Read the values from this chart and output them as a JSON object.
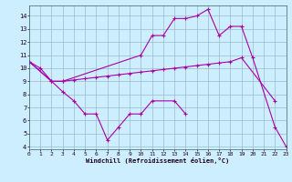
{
  "line1_x": [
    0,
    1,
    2,
    3,
    10,
    11,
    12,
    13,
    14,
    15,
    16,
    17,
    18,
    19,
    20,
    22,
    23
  ],
  "line1_y": [
    10.5,
    10.0,
    9.0,
    9.0,
    11.0,
    12.5,
    12.5,
    13.8,
    13.8,
    14.0,
    14.5,
    12.5,
    13.2,
    13.2,
    10.8,
    5.5,
    4.0
  ],
  "line2_x": [
    0,
    2,
    3,
    4,
    5,
    6,
    7,
    8,
    9,
    10,
    11,
    12,
    13,
    14,
    15,
    16,
    17,
    18,
    19,
    22
  ],
  "line2_y": [
    10.5,
    9.0,
    9.0,
    9.1,
    9.2,
    9.3,
    9.4,
    9.5,
    9.6,
    9.7,
    9.8,
    9.9,
    10.0,
    10.1,
    10.2,
    10.3,
    10.4,
    10.5,
    10.8,
    7.5
  ],
  "line3_x": [
    0,
    2,
    3,
    4,
    5,
    6,
    7,
    8,
    9,
    10,
    11,
    13,
    14
  ],
  "line3_y": [
    10.5,
    9.0,
    8.2,
    7.5,
    6.5,
    6.5,
    4.5,
    5.5,
    6.5,
    6.5,
    7.5,
    7.5,
    6.5
  ],
  "color": "#aa00aa",
  "bg_color": "#cceeff",
  "grid_color": "#99bbcc",
  "xlabel": "Windchill (Refroidissement éolien,°C)",
  "xlim": [
    0,
    23
  ],
  "ylim": [
    3.8,
    14.8
  ],
  "xticks": [
    0,
    1,
    2,
    3,
    4,
    5,
    6,
    7,
    8,
    9,
    10,
    11,
    12,
    13,
    14,
    15,
    16,
    17,
    18,
    19,
    20,
    21,
    22,
    23
  ],
  "yticks": [
    4,
    5,
    6,
    7,
    8,
    9,
    10,
    11,
    12,
    13,
    14
  ],
  "marker": "+"
}
